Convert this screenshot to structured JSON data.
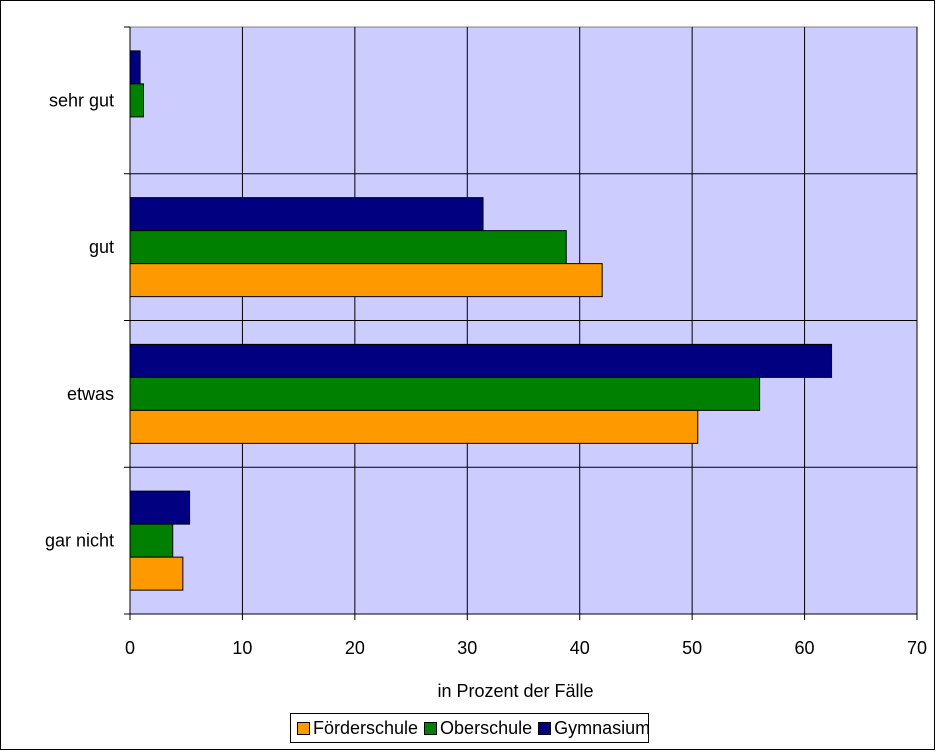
{
  "chart_data": {
    "type": "bar",
    "orientation": "horizontal",
    "categories": [
      "sehr gut",
      "gut",
      "etwas",
      "gar nicht"
    ],
    "series": [
      {
        "name": "Gymnasium",
        "color": "#000080",
        "values": [
          0.9,
          31.4,
          62.4,
          5.3
        ]
      },
      {
        "name": "Oberschule",
        "color": "#008000",
        "values": [
          1.2,
          38.8,
          56.0,
          3.8
        ]
      },
      {
        "name": "Förderschule",
        "color": "#ff9900",
        "values": [
          0.0,
          42.0,
          50.5,
          4.7
        ]
      }
    ],
    "xlabel": "in Prozent der Fälle",
    "ylabel": "",
    "xlim": [
      0,
      70
    ],
    "x_ticks": [
      0,
      10,
      20,
      30,
      40,
      50,
      60,
      70
    ],
    "grid": true,
    "plot_background": "#ccccff",
    "legend_position": "bottom",
    "legend": [
      "Förderschule",
      "Oberschule",
      "Gymnasium"
    ]
  }
}
